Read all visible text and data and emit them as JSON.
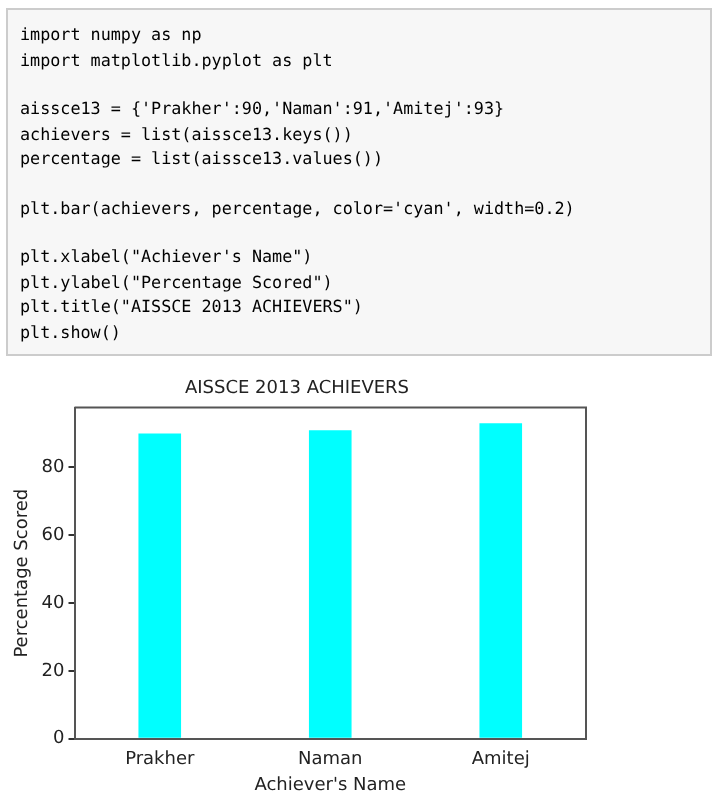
{
  "chart_data": {
    "type": "bar",
    "title": "AISSCE 2013 ACHIEVERS",
    "xlabel": "Achiever's Name",
    "ylabel": "Percentage Scored",
    "categories": [
      "Prakher",
      "Naman",
      "Amitej"
    ],
    "values": [
      90,
      91,
      93
    ],
    "color": "#00ffff",
    "ylim": [
      0,
      97.65
    ],
    "yticks": [
      0,
      20,
      40,
      60,
      80
    ],
    "grid": false,
    "annotations": [
      "import numpy as np",
      "import matplotlib.pyplot as plt",
      "aissce13 = {'Prakher':90,'Naman':91,'Amitej':93}",
      "achievers = list(aissce13.keys())",
      "percentage = list(aissce13.values())",
      "plt.bar(achievers, percentage, color='cyan', width=0.2)",
      "plt.xlabel(\"Achiever's Name\")",
      "plt.ylabel(\"Percentage Scored\")",
      "plt.title(\"AISSCE 2013 ACHIEVERS\")",
      "plt.show()"
    ]
  }
}
